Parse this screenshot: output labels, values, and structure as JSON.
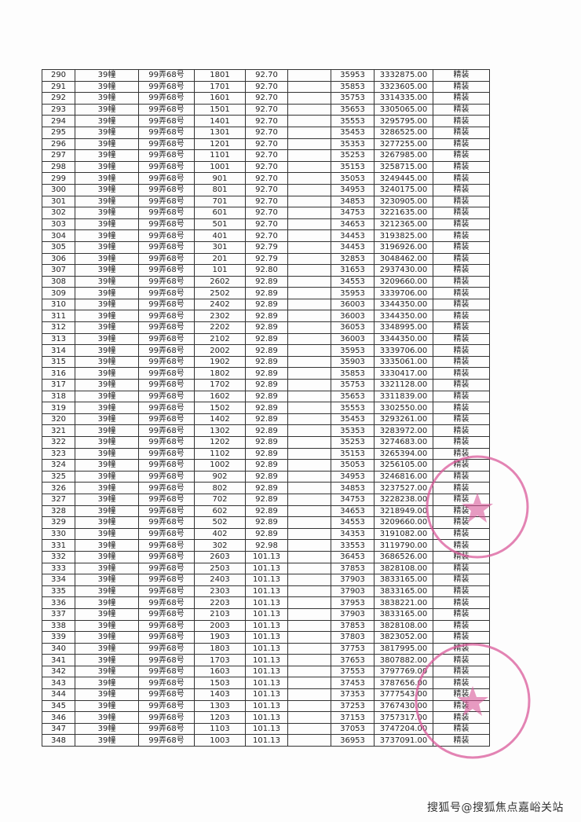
{
  "table": {
    "rows": [
      [
        "290",
        "39幢",
        "99弄68号",
        "1801",
        "92.70",
        "",
        "35953",
        "3332875.00",
        "精装"
      ],
      [
        "291",
        "39幢",
        "99弄68号",
        "1701",
        "92.70",
        "",
        "35853",
        "3323605.00",
        "精装"
      ],
      [
        "292",
        "39幢",
        "99弄68号",
        "1601",
        "92.70",
        "",
        "35753",
        "3314335.00",
        "精装"
      ],
      [
        "293",
        "39幢",
        "99弄68号",
        "1501",
        "92.70",
        "",
        "35653",
        "3305065.00",
        "精装"
      ],
      [
        "294",
        "39幢",
        "99弄68号",
        "1401",
        "92.70",
        "",
        "35553",
        "3295795.00",
        "精装"
      ],
      [
        "295",
        "39幢",
        "99弄68号",
        "1301",
        "92.70",
        "",
        "35453",
        "3286525.00",
        "精装"
      ],
      [
        "296",
        "39幢",
        "99弄68号",
        "1201",
        "92.70",
        "",
        "35353",
        "3277255.00",
        "精装"
      ],
      [
        "297",
        "39幢",
        "99弄68号",
        "1101",
        "92.70",
        "",
        "35253",
        "3267985.00",
        "精装"
      ],
      [
        "298",
        "39幢",
        "99弄68号",
        "1001",
        "92.70",
        "",
        "35153",
        "3258715.00",
        "精装"
      ],
      [
        "299",
        "39幢",
        "99弄68号",
        "901",
        "92.70",
        "",
        "35053",
        "3249445.00",
        "精装"
      ],
      [
        "300",
        "39幢",
        "99弄68号",
        "801",
        "92.70",
        "",
        "34953",
        "3240175.00",
        "精装"
      ],
      [
        "301",
        "39幢",
        "99弄68号",
        "701",
        "92.70",
        "",
        "34853",
        "3230905.00",
        "精装"
      ],
      [
        "302",
        "39幢",
        "99弄68号",
        "601",
        "92.70",
        "",
        "34753",
        "3221635.00",
        "精装"
      ],
      [
        "303",
        "39幢",
        "99弄68号",
        "501",
        "92.70",
        "",
        "34653",
        "3212365.00",
        "精装"
      ],
      [
        "304",
        "39幢",
        "99弄68号",
        "401",
        "92.70",
        "",
        "34453",
        "3193825.00",
        "精装"
      ],
      [
        "305",
        "39幢",
        "99弄68号",
        "301",
        "92.79",
        "",
        "34453",
        "3196926.00",
        "精装"
      ],
      [
        "306",
        "39幢",
        "99弄68号",
        "201",
        "92.79",
        "",
        "32853",
        "3048462.00",
        "精装"
      ],
      [
        "307",
        "39幢",
        "99弄68号",
        "101",
        "92.80",
        "",
        "31653",
        "2937430.00",
        "精装"
      ],
      [
        "308",
        "39幢",
        "99弄68号",
        "2602",
        "92.89",
        "",
        "34553",
        "3209660.00",
        "精装"
      ],
      [
        "309",
        "39幢",
        "99弄68号",
        "2502",
        "92.89",
        "",
        "35953",
        "3339706.00",
        "精装"
      ],
      [
        "310",
        "39幢",
        "99弄68号",
        "2402",
        "92.89",
        "",
        "36003",
        "3344350.00",
        "精装"
      ],
      [
        "311",
        "39幢",
        "99弄68号",
        "2302",
        "92.89",
        "",
        "36003",
        "3344350.00",
        "精装"
      ],
      [
        "312",
        "39幢",
        "99弄68号",
        "2202",
        "92.89",
        "",
        "36053",
        "3348995.00",
        "精装"
      ],
      [
        "313",
        "39幢",
        "99弄68号",
        "2102",
        "92.89",
        "",
        "36003",
        "3344350.00",
        "精装"
      ],
      [
        "314",
        "39幢",
        "99弄68号",
        "2002",
        "92.89",
        "",
        "35953",
        "3339706.00",
        "精装"
      ],
      [
        "315",
        "39幢",
        "99弄68号",
        "1902",
        "92.89",
        "",
        "35903",
        "3335061.00",
        "精装"
      ],
      [
        "316",
        "39幢",
        "99弄68号",
        "1802",
        "92.89",
        "",
        "35853",
        "3330417.00",
        "精装"
      ],
      [
        "317",
        "39幢",
        "99弄68号",
        "1702",
        "92.89",
        "",
        "35753",
        "3321128.00",
        "精装"
      ],
      [
        "318",
        "39幢",
        "99弄68号",
        "1602",
        "92.89",
        "",
        "35653",
        "3311839.00",
        "精装"
      ],
      [
        "319",
        "39幢",
        "99弄68号",
        "1502",
        "92.89",
        "",
        "35553",
        "3302550.00",
        "精装"
      ],
      [
        "320",
        "39幢",
        "99弄68号",
        "1402",
        "92.89",
        "",
        "35453",
        "3293261.00",
        "精装"
      ],
      [
        "321",
        "39幢",
        "99弄68号",
        "1302",
        "92.89",
        "",
        "35353",
        "3283972.00",
        "精装"
      ],
      [
        "322",
        "39幢",
        "99弄68号",
        "1202",
        "92.89",
        "",
        "35253",
        "3274683.00",
        "精装"
      ],
      [
        "323",
        "39幢",
        "99弄68号",
        "1102",
        "92.89",
        "",
        "35153",
        "3265394.00",
        "精装"
      ],
      [
        "324",
        "39幢",
        "99弄68号",
        "1002",
        "92.89",
        "",
        "35053",
        "3256105.00",
        "精装"
      ],
      [
        "325",
        "39幢",
        "99弄68号",
        "902",
        "92.89",
        "",
        "34953",
        "3246816.00",
        "精装"
      ],
      [
        "326",
        "39幢",
        "99弄68号",
        "802",
        "92.89",
        "",
        "34853",
        "3237527.00",
        "精装"
      ],
      [
        "327",
        "39幢",
        "99弄68号",
        "702",
        "92.89",
        "",
        "34753",
        "3228238.00",
        "精装"
      ],
      [
        "328",
        "39幢",
        "99弄68号",
        "602",
        "92.89",
        "",
        "34653",
        "3218949.00",
        "精装"
      ],
      [
        "329",
        "39幢",
        "99弄68号",
        "502",
        "92.89",
        "",
        "34553",
        "3209660.00",
        "精装"
      ],
      [
        "330",
        "39幢",
        "99弄68号",
        "402",
        "92.89",
        "",
        "34353",
        "3191082.00",
        "精装"
      ],
      [
        "331",
        "39幢",
        "99弄68号",
        "302",
        "92.98",
        "",
        "33553",
        "3119790.00",
        "精装"
      ],
      [
        "332",
        "39幢",
        "99弄68号",
        "2603",
        "101.13",
        "",
        "36453",
        "3686526.00",
        "精装"
      ],
      [
        "333",
        "39幢",
        "99弄68号",
        "2503",
        "101.13",
        "",
        "37853",
        "3828108.00",
        "精装"
      ],
      [
        "334",
        "39幢",
        "99弄68号",
        "2403",
        "101.13",
        "",
        "37903",
        "3833165.00",
        "精装"
      ],
      [
        "335",
        "39幢",
        "99弄68号",
        "2303",
        "101.13",
        "",
        "37903",
        "3833165.00",
        "精装"
      ],
      [
        "336",
        "39幢",
        "99弄68号",
        "2203",
        "101.13",
        "",
        "37953",
        "3838221.00",
        "精装"
      ],
      [
        "337",
        "39幢",
        "99弄68号",
        "2103",
        "101.13",
        "",
        "37903",
        "3833165.00",
        "精装"
      ],
      [
        "338",
        "39幢",
        "99弄68号",
        "2003",
        "101.13",
        "",
        "37853",
        "3828108.00",
        "精装"
      ],
      [
        "339",
        "39幢",
        "99弄68号",
        "1903",
        "101.13",
        "",
        "37803",
        "3823052.00",
        "精装"
      ],
      [
        "340",
        "39幢",
        "99弄68号",
        "1803",
        "101.13",
        "",
        "37753",
        "3817995.00",
        "精装"
      ],
      [
        "341",
        "39幢",
        "99弄68号",
        "1703",
        "101.13",
        "",
        "37653",
        "3807882.00",
        "精装"
      ],
      [
        "342",
        "39幢",
        "99弄68号",
        "1603",
        "101.13",
        "",
        "37553",
        "3797769.00",
        "精装"
      ],
      [
        "343",
        "39幢",
        "99弄68号",
        "1503",
        "101.13",
        "",
        "37453",
        "3787656.00",
        "精装"
      ],
      [
        "344",
        "39幢",
        "99弄68号",
        "1403",
        "101.13",
        "",
        "37353",
        "3777543.00",
        "精装"
      ],
      [
        "345",
        "39幢",
        "99弄68号",
        "1303",
        "101.13",
        "",
        "37253",
        "3767430.00",
        "精装"
      ],
      [
        "346",
        "39幢",
        "99弄68号",
        "1203",
        "101.13",
        "",
        "37153",
        "3757317.00",
        "精装"
      ],
      [
        "347",
        "39幢",
        "99弄68号",
        "1103",
        "101.13",
        "",
        "37053",
        "3747204.00",
        "精装"
      ],
      [
        "348",
        "39幢",
        "99弄68号",
        "1003",
        "101.13",
        "",
        "36953",
        "3737091.00",
        "精装"
      ]
    ]
  },
  "stamp_color": "#d9599a",
  "footer": {
    "watermark": "搜狐号@搜狐焦点嘉峪关站"
  }
}
